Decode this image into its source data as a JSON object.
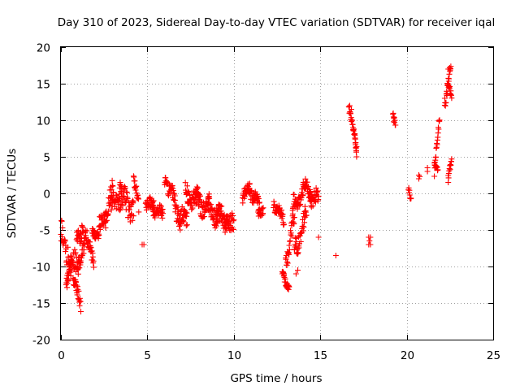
{
  "chart_data": {
    "type": "scatter",
    "title": "Day 310 of 2023, Sidereal Day-to-day VTEC variation (SDTVAR) for receiver iqal",
    "xlabel": "GPS time / hours",
    "ylabel": "SDTVAR / TECUs",
    "xlim": [
      0,
      25
    ],
    "ylim": [
      -20,
      20
    ],
    "xticks": [
      "0",
      "5",
      "10",
      "15",
      "20",
      "25"
    ],
    "yticks": [
      "20",
      "15",
      "10",
      "5",
      "0",
      "-5",
      "-10",
      "-15",
      "-20"
    ],
    "grid": true,
    "marker": "+",
    "color": "#ff0000",
    "segments": [
      {
        "x0": 0.0,
        "x1": 0.4,
        "y0": -5,
        "y1": -11,
        "noise": 3
      },
      {
        "x0": 0.3,
        "x1": 0.6,
        "y0": -13,
        "y1": -8,
        "noise": 1.5
      },
      {
        "x0": 0.4,
        "x1": 1.0,
        "y0": -8,
        "y1": -11,
        "noise": 3
      },
      {
        "x0": 0.7,
        "x1": 1.15,
        "y0": -12,
        "y1": -15,
        "noise": 1.5
      },
      {
        "x0": 0.9,
        "x1": 1.3,
        "y0": -7,
        "y1": -4,
        "noise": 2
      },
      {
        "x0": 1.0,
        "x1": 1.4,
        "y0": -10,
        "y1": -6,
        "noise": 2
      },
      {
        "x0": 1.4,
        "x1": 1.9,
        "y0": -6,
        "y1": -9,
        "noise": 2
      },
      {
        "x0": 1.8,
        "x1": 2.2,
        "y0": -5,
        "y1": -6,
        "noise": 1
      },
      {
        "x0": 2.2,
        "x1": 2.6,
        "y0": -5,
        "y1": -3,
        "noise": 2
      },
      {
        "x0": 2.5,
        "x1": 3.0,
        "y0": -3,
        "y1": 0,
        "noise": 2.5
      },
      {
        "x0": 2.9,
        "x1": 3.5,
        "y0": -2,
        "y1": 1,
        "noise": 3
      },
      {
        "x0": 3.4,
        "x1": 4.2,
        "y0": -1,
        "y1": -2,
        "noise": 3
      },
      {
        "x0": 4.2,
        "x1": 4.5,
        "y0": 2,
        "y1": -2,
        "noise": 1.5
      },
      {
        "x0": 4.9,
        "x1": 5.4,
        "y0": -2,
        "y1": -1,
        "noise": 1.5
      },
      {
        "x0": 5.3,
        "x1": 5.9,
        "y0": -2,
        "y1": -3,
        "noise": 1.5
      },
      {
        "x0": 6.0,
        "x1": 6.6,
        "y0": 2,
        "y1": -1,
        "noise": 2
      },
      {
        "x0": 6.6,
        "x1": 7.3,
        "y0": -2,
        "y1": -4,
        "noise": 2.5
      },
      {
        "x0": 7.2,
        "x1": 8.0,
        "y0": 0,
        "y1": -1,
        "noise": 2.5
      },
      {
        "x0": 7.8,
        "x1": 8.6,
        "y0": -1,
        "y1": -2,
        "noise": 2.5
      },
      {
        "x0": 8.5,
        "x1": 9.2,
        "y0": -2,
        "y1": -3,
        "noise": 2.5
      },
      {
        "x0": 9.0,
        "x1": 9.6,
        "y0": -3,
        "y1": -4,
        "noise": 2.5
      },
      {
        "x0": 9.5,
        "x1": 10.0,
        "y0": -3,
        "y1": -5,
        "noise": 2.5
      },
      {
        "x0": 10.5,
        "x1": 10.9,
        "y0": -1,
        "y1": 1,
        "noise": 1.5
      },
      {
        "x0": 10.9,
        "x1": 11.5,
        "y0": 1,
        "y1": -2,
        "noise": 2
      },
      {
        "x0": 11.4,
        "x1": 11.7,
        "y0": -3,
        "y1": -2,
        "noise": 1
      },
      {
        "x0": 12.3,
        "x1": 12.9,
        "y0": -1,
        "y1": -4,
        "noise": 1.5
      },
      {
        "x0": 12.8,
        "x1": 13.2,
        "y0": -11,
        "y1": -13,
        "noise": 1
      },
      {
        "x0": 13.0,
        "x1": 13.5,
        "y0": -9,
        "y1": -4,
        "noise": 2.5
      },
      {
        "x0": 13.4,
        "x1": 14.0,
        "y0": -2,
        "y1": 0,
        "noise": 2
      },
      {
        "x0": 13.5,
        "x1": 14.2,
        "y0": -8,
        "y1": -3,
        "noise": 2.5
      },
      {
        "x0": 14.0,
        "x1": 14.5,
        "y0": 1,
        "y1": 0,
        "noise": 1.5
      },
      {
        "x0": 14.4,
        "x1": 14.9,
        "y0": 0,
        "y1": -1,
        "noise": 2
      },
      {
        "x0": 16.65,
        "x1": 17.1,
        "y0": 12,
        "y1": 6,
        "noise": 1
      },
      {
        "x0": 17.0,
        "x1": 17.1,
        "y0": 8,
        "y1": 5,
        "noise": 0.5
      },
      {
        "x0": 19.2,
        "x1": 19.35,
        "y0": 11,
        "y1": 9.5,
        "noise": 0.5
      },
      {
        "x0": 20.1,
        "x1": 20.25,
        "y0": 1,
        "y1": -1,
        "noise": 0.8
      },
      {
        "x0": 21.6,
        "x1": 21.9,
        "y0": 3,
        "y1": 10,
        "noise": 1.2
      },
      {
        "x0": 21.6,
        "x1": 21.8,
        "y0": 4,
        "y1": 3,
        "noise": 0.5
      },
      {
        "x0": 22.2,
        "x1": 22.55,
        "y0": 12,
        "y1": 17,
        "noise": 1.5
      },
      {
        "x0": 22.35,
        "x1": 22.6,
        "y0": 15,
        "y1": 13,
        "noise": 1
      },
      {
        "x0": 22.4,
        "x1": 22.6,
        "y0": 2,
        "y1": 4.5,
        "noise": 0.8
      }
    ],
    "points": [
      [
        4.7,
        -7
      ],
      [
        4.8,
        -7
      ],
      [
        6.8,
        -4
      ],
      [
        6.9,
        -5
      ],
      [
        12.8,
        -11
      ],
      [
        12.9,
        -11
      ],
      [
        13.6,
        -11
      ],
      [
        13.7,
        -10.5
      ],
      [
        14.9,
        -6
      ],
      [
        15.9,
        -8.5
      ],
      [
        16.7,
        12
      ],
      [
        16.8,
        11.5
      ],
      [
        16.9,
        9
      ],
      [
        17.8,
        -6
      ],
      [
        17.8,
        -7
      ],
      [
        17.85,
        -6.5
      ],
      [
        17.9,
        -6
      ],
      [
        17.9,
        -7
      ],
      [
        19.3,
        10
      ],
      [
        19.25,
        9.8
      ],
      [
        20.7,
        2.5
      ],
      [
        20.7,
        2
      ],
      [
        20.75,
        2.3
      ],
      [
        21.2,
        3
      ],
      [
        21.2,
        3.5
      ],
      [
        22.2,
        13
      ],
      [
        22.4,
        17
      ],
      [
        22.4,
        1.5
      ]
    ]
  }
}
